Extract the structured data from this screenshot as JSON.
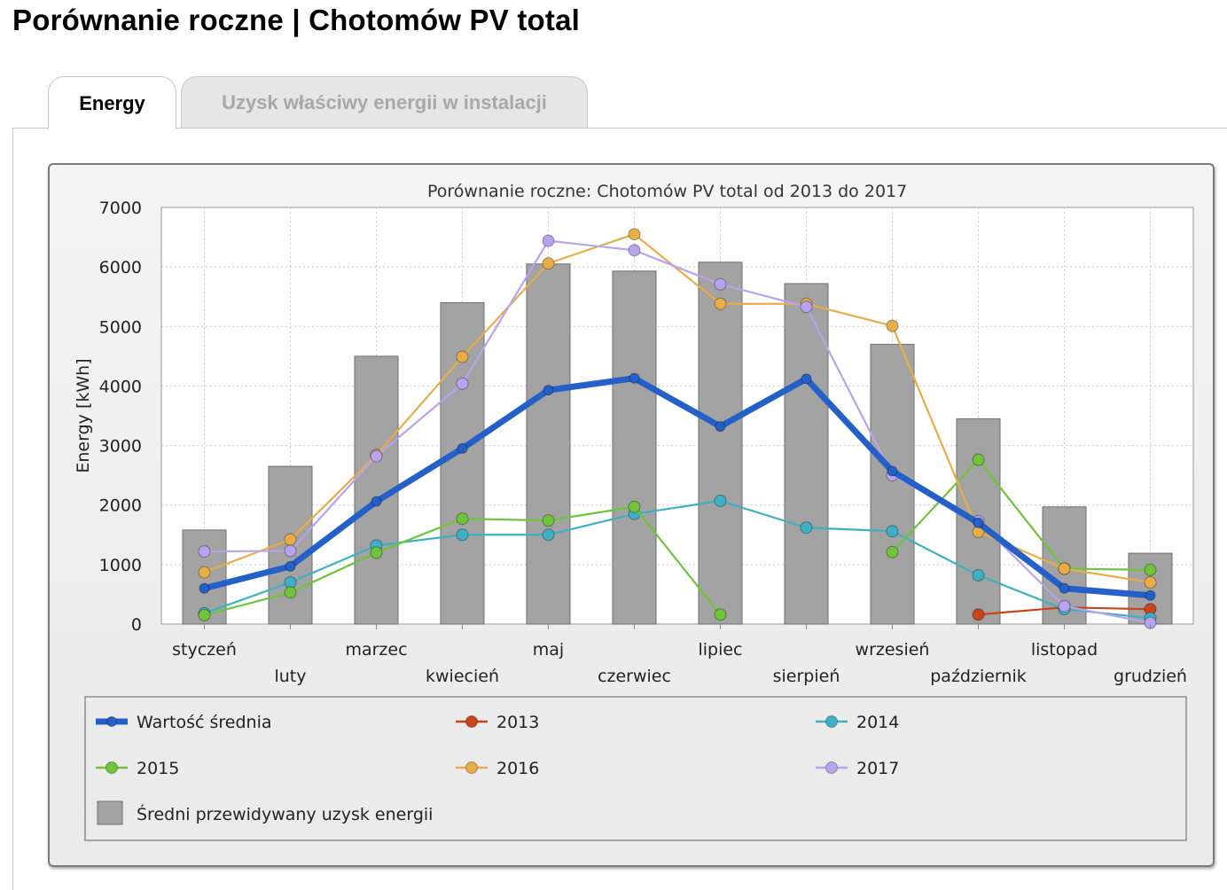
{
  "page": {
    "title": "Porównanie roczne | Chotomów PV total"
  },
  "tabs": [
    {
      "label": "Energy",
      "active": true
    },
    {
      "label": "Uzysk właściwy energii w instalacji",
      "active": false
    }
  ],
  "chart_data": {
    "type": "bar+line",
    "title": "Porównanie roczne: Chotomów PV total od 2013 do 2017",
    "xlabel": "",
    "ylabel": "Energy [kWh]",
    "ylim": [
      0,
      7000
    ],
    "yticks": [
      0,
      1000,
      2000,
      3000,
      4000,
      5000,
      6000,
      7000
    ],
    "grid": true,
    "categories": [
      "styczeń",
      "luty",
      "marzec",
      "kwiecień",
      "maj",
      "czerwiec",
      "lipiec",
      "sierpień",
      "wrzesień",
      "październik",
      "listopad",
      "grudzień"
    ],
    "bars": {
      "name": "Średni przewidywany uzysk energii",
      "color": "#a3a3a3",
      "values": [
        1580,
        2650,
        4500,
        5400,
        6050,
        5930,
        6080,
        5720,
        4700,
        3450,
        1970,
        1190
      ]
    },
    "series": [
      {
        "name": "Wartość średnia",
        "color": "#2560c8",
        "values": [
          600,
          970,
          2060,
          2950,
          3930,
          4130,
          3320,
          4120,
          2570,
          1700,
          600,
          480
        ]
      },
      {
        "name": "2013",
        "color": "#c8451a",
        "values": [
          null,
          null,
          null,
          null,
          null,
          null,
          null,
          null,
          null,
          160,
          280,
          250
        ]
      },
      {
        "name": "2014",
        "color": "#3fb0c4",
        "values": [
          180,
          700,
          1320,
          1500,
          1500,
          1850,
          2070,
          1620,
          1560,
          820,
          250,
          100
        ]
      },
      {
        "name": "2015",
        "color": "#6fc43a",
        "values": [
          150,
          530,
          1200,
          1770,
          1740,
          1970,
          160,
          null,
          1210,
          2760,
          930,
          910
        ]
      },
      {
        "name": "2016",
        "color": "#e9ad48",
        "values": [
          870,
          1420,
          2840,
          4490,
          6060,
          6550,
          5380,
          5380,
          5010,
          1550,
          930,
          700
        ]
      },
      {
        "name": "2017",
        "color": "#b8a4ee",
        "values": [
          1220,
          1230,
          2820,
          4040,
          6440,
          6280,
          5710,
          5330,
          2500,
          1730,
          300,
          20
        ]
      }
    ],
    "legend": {
      "position": "bottom",
      "entries": [
        "Wartość średnia",
        "2013",
        "2014",
        "2015",
        "2016",
        "2017",
        "Średni przewidywany uzysk energii"
      ]
    }
  }
}
